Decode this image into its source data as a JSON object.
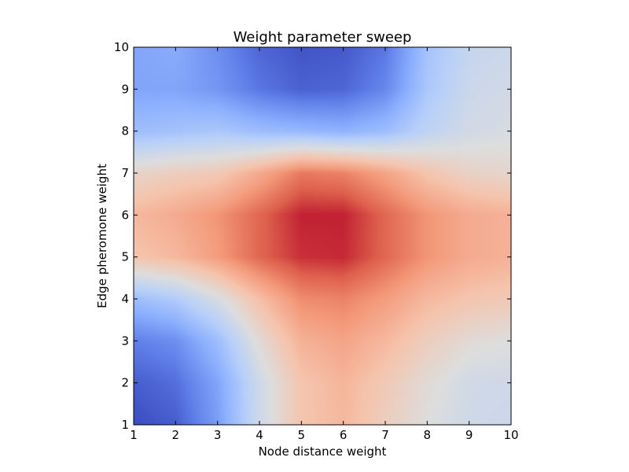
{
  "chart_data": {
    "type": "heatmap",
    "title": "Weight parameter sweep",
    "xlabel": "Node distance weight",
    "ylabel": "Edge pheromone weight",
    "xlim": [
      1,
      10
    ],
    "ylim": [
      1,
      10
    ],
    "x_ticks": [
      "1",
      "2",
      "3",
      "4",
      "5",
      "6",
      "7",
      "8",
      "9",
      "10"
    ],
    "y_ticks": [
      "1",
      "2",
      "3",
      "4",
      "5",
      "6",
      "7",
      "8",
      "9",
      "10"
    ],
    "colormap": "coolwarm",
    "grid": false,
    "x": [
      1,
      2,
      3,
      4,
      5,
      6,
      7,
      8,
      9,
      10
    ],
    "y": [
      1,
      2,
      3,
      4,
      5,
      6,
      7,
      8,
      9,
      10
    ],
    "z": [
      [
        0.0,
        0.04,
        0.2,
        0.45,
        0.62,
        0.66,
        0.58,
        0.5,
        0.45,
        0.44
      ],
      [
        0.04,
        0.08,
        0.22,
        0.45,
        0.62,
        0.67,
        0.6,
        0.52,
        0.46,
        0.45
      ],
      [
        0.12,
        0.16,
        0.3,
        0.52,
        0.68,
        0.72,
        0.66,
        0.58,
        0.52,
        0.5
      ],
      [
        0.3,
        0.36,
        0.48,
        0.64,
        0.78,
        0.8,
        0.74,
        0.66,
        0.62,
        0.6
      ],
      [
        0.62,
        0.66,
        0.74,
        0.86,
        0.94,
        0.95,
        0.86,
        0.76,
        0.7,
        0.68
      ],
      [
        0.66,
        0.7,
        0.76,
        0.86,
        0.96,
        0.96,
        0.86,
        0.76,
        0.7,
        0.68
      ],
      [
        0.55,
        0.58,
        0.6,
        0.7,
        0.82,
        0.8,
        0.72,
        0.62,
        0.56,
        0.54
      ],
      [
        0.3,
        0.32,
        0.34,
        0.3,
        0.28,
        0.26,
        0.3,
        0.4,
        0.46,
        0.48
      ],
      [
        0.22,
        0.22,
        0.18,
        0.1,
        0.05,
        0.06,
        0.14,
        0.34,
        0.44,
        0.46
      ],
      [
        0.22,
        0.24,
        0.16,
        0.06,
        0.02,
        0.03,
        0.1,
        0.32,
        0.42,
        0.44
      ]
    ]
  }
}
